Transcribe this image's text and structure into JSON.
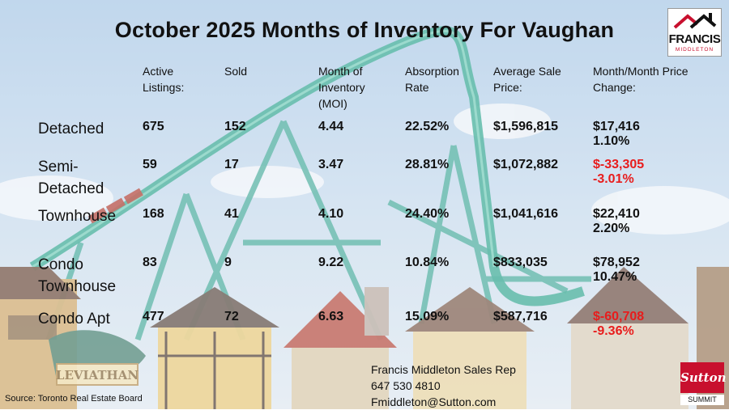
{
  "title": "October 2025 Months of Inventory For Vaughan",
  "logo_top": {
    "line1": "FRANCIS",
    "line2": "MIDDLETON"
  },
  "logo_bottom": {
    "brand": "Sutton",
    "sub": "SUMMIT"
  },
  "columns": [
    {
      "label": "Active Listings:"
    },
    {
      "label": "Sold"
    },
    {
      "label": "Month of Inventory (MOI)"
    },
    {
      "label": "Absorption Rate"
    },
    {
      "label": "Average Sale Price:"
    },
    {
      "label": "Month/Month Price Change:"
    }
  ],
  "rows": [
    {
      "type": "Detached",
      "active": "675",
      "sold": "152",
      "moi": "4.44",
      "absorption": "22.52%",
      "avg_price": "$1,596,815",
      "change_amount": "$17,416",
      "change_pct": "1.10%",
      "change_negative": false
    },
    {
      "type": "Semi-Detached",
      "active": "59",
      "sold": "17",
      "moi": "3.47",
      "absorption": "28.81%",
      "avg_price": "$1,072,882",
      "change_amount": "$-33,305",
      "change_pct": "-3.01%",
      "change_negative": true
    },
    {
      "type": "Townhouse",
      "active": "168",
      "sold": "41",
      "moi": "4.10",
      "absorption": "24.40%",
      "avg_price": "$1,041,616",
      "change_amount": "$22,410",
      "change_pct": "2.20%",
      "change_negative": false
    },
    {
      "type": "Condo Townhouse",
      "active": "83",
      "sold": "9",
      "moi": "9.22",
      "absorption": "10.84%",
      "avg_price": "$833,035",
      "change_amount": "$78,952",
      "change_pct": "10.47%",
      "change_negative": false
    },
    {
      "type": "Condo Apt",
      "active": "477",
      "sold": "72",
      "moi": "6.63",
      "absorption": "15.09%",
      "avg_price": "$587,716",
      "change_amount": "$-60,708",
      "change_pct": "-9.36%",
      "change_negative": true
    }
  ],
  "contact": {
    "name": "Francis Middleton Sales Rep",
    "phone": "647 530 4810",
    "email": "Fmiddleton@Sutton.com"
  },
  "source": "Source: Toronto Real Estate Board",
  "colors": {
    "negative": "#e81c1c",
    "brand_red": "#c8102e",
    "coaster": "#2fa58e"
  },
  "background": {
    "sign_text": "LEVIATHAN"
  }
}
